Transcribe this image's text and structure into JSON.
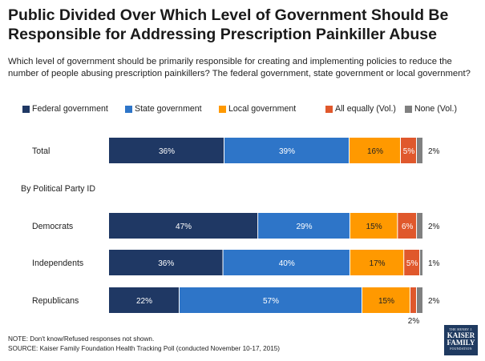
{
  "title": "Public Divided Over Which Level of Government Should Be Responsible for Addressing Prescription Painkiller Abuse",
  "subtitle": "Which level of government should be primarily responsible for creating and implementing policies to reduce the number of people abusing prescription painkillers? The federal government, state government or local government?",
  "section_label": "By Political Party ID",
  "notes": {
    "line1": "NOTE: Don't know/Refused responses not shown.",
    "line2": "SOURCE: Kaiser Family Foundation Health Tracking Poll (conducted November 10-17, 2015)"
  },
  "logo": {
    "line1": "THE HENRY J.",
    "line2": "KAISER FAMILY",
    "line3": "FOUNDATION"
  },
  "colors": {
    "federal": "#1f3864",
    "state": "#2e75c8",
    "local": "#ff9900",
    "all": "#e0582c",
    "none": "#808080"
  },
  "chart_data": {
    "type": "bar",
    "orientation": "horizontal",
    "stacked": true,
    "value_format": "percent",
    "categories": [
      "Total",
      "Democrats",
      "Independents",
      "Republicans"
    ],
    "series": [
      {
        "name": "Federal government",
        "values": [
          36,
          47,
          36,
          22
        ],
        "labels": [
          "36%",
          "47%",
          "36%",
          "22%"
        ]
      },
      {
        "name": "State government",
        "values": [
          39,
          29,
          40,
          57
        ],
        "labels": [
          "39%",
          "29%",
          "40%",
          "57%"
        ]
      },
      {
        "name": "Local government",
        "values": [
          16,
          15,
          17,
          15
        ],
        "labels": [
          "16%",
          "15%",
          "17%",
          "15%"
        ]
      },
      {
        "name": "All equally (Vol.)",
        "values": [
          5,
          6,
          5,
          2
        ],
        "labels": [
          "5%",
          "6%",
          "5%",
          "2%"
        ]
      },
      {
        "name": "None (Vol.)",
        "values": [
          2,
          2,
          1,
          2
        ],
        "labels": [
          "2%",
          "2%",
          "1%",
          "2%"
        ]
      }
    ],
    "legend": "top",
    "grid": false
  }
}
